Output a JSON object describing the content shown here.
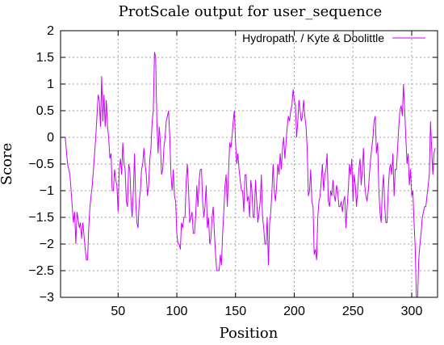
{
  "chart_data": {
    "type": "line",
    "title": "ProtScale output for user_sequence",
    "xlabel": "Position",
    "ylabel": "Score",
    "xlim": [
      1,
      322
    ],
    "ylim": [
      -3,
      2
    ],
    "xticks": [
      50,
      100,
      150,
      200,
      250,
      300
    ],
    "yticks": [
      2,
      1.5,
      1,
      0.5,
      0,
      -0.5,
      -1,
      -1.5,
      -2,
      -2.5,
      -3
    ],
    "ytick_labels": [
      "2",
      "1.5",
      "1",
      "0.5",
      "0",
      "−0.5",
      "−1",
      "−1.5",
      "−2",
      "−2.5",
      "−3"
    ],
    "grid": true,
    "legend_position": "top-right",
    "line_color": "#cc00ff",
    "series": [
      {
        "name": "Hydropath. / Kyte & Doolittle",
        "points": [
          [
            5,
            0.0
          ],
          [
            7,
            -0.5
          ],
          [
            9,
            -0.7
          ],
          [
            10,
            -1.0
          ],
          [
            12,
            -1.6
          ],
          [
            13,
            -1.4
          ],
          [
            14,
            -2.0
          ],
          [
            15,
            -1.4
          ],
          [
            17,
            -1.7
          ],
          [
            18,
            -1.6
          ],
          [
            19,
            -1.9
          ],
          [
            20,
            -1.6
          ],
          [
            22,
            -2.1
          ],
          [
            23,
            -2.3
          ],
          [
            24,
            -2.3
          ],
          [
            25,
            -1.7
          ],
          [
            26,
            -1.3
          ],
          [
            27,
            -1.1
          ],
          [
            28,
            -0.9
          ],
          [
            30,
            -0.3
          ],
          [
            31,
            0.0
          ],
          [
            32,
            0.4
          ],
          [
            33,
            0.8
          ],
          [
            34,
            0.7
          ],
          [
            35,
            0.2
          ],
          [
            36,
            1.15
          ],
          [
            37,
            0.3
          ],
          [
            38,
            0.8
          ],
          [
            39,
            0.2
          ],
          [
            40,
            0.7
          ],
          [
            41,
            0.2
          ],
          [
            42,
            0.0
          ],
          [
            43,
            -0.4
          ],
          [
            44,
            -0.3
          ],
          [
            45,
            -1.0
          ],
          [
            46,
            -1.0
          ],
          [
            47,
            -0.6
          ],
          [
            48,
            -0.8
          ],
          [
            49,
            -0.9
          ],
          [
            50,
            -1.4
          ],
          [
            51,
            -0.6
          ],
          [
            52,
            -0.4
          ],
          [
            53,
            -0.7
          ],
          [
            54,
            -0.1
          ],
          [
            55,
            -0.5
          ],
          [
            56,
            -0.6
          ],
          [
            57,
            -1.2
          ],
          [
            58,
            -1.3
          ],
          [
            59,
            -0.5
          ],
          [
            60,
            -0.6
          ],
          [
            61,
            -1.2
          ],
          [
            62,
            -1.5
          ],
          [
            63,
            -1.0
          ],
          [
            64,
            -0.3
          ],
          [
            65,
            -1.2
          ],
          [
            66,
            -1.6
          ],
          [
            67,
            -1.7
          ],
          [
            68,
            -1.2
          ],
          [
            69,
            -1.0
          ],
          [
            70,
            -0.6
          ],
          [
            71,
            -0.5
          ],
          [
            72,
            -0.2
          ],
          [
            73,
            -0.5
          ],
          [
            74,
            -0.7
          ],
          [
            75,
            -1.1
          ],
          [
            76,
            -0.9
          ],
          [
            77,
            -0.4
          ],
          [
            78,
            -0.2
          ],
          [
            79,
            0.3
          ],
          [
            80,
            0.5
          ],
          [
            81,
            1.6
          ],
          [
            82,
            1.5
          ],
          [
            83,
            0.3
          ],
          [
            84,
            -0.3
          ],
          [
            85,
            0.2
          ],
          [
            86,
            -0.1
          ],
          [
            87,
            -0.7
          ],
          [
            88,
            -0.6
          ],
          [
            89,
            -0.2
          ],
          [
            90,
            0.0
          ],
          [
            91,
            0.3
          ],
          [
            92,
            0.4
          ],
          [
            93,
            0.5
          ],
          [
            94,
            0.0
          ],
          [
            95,
            -0.7
          ],
          [
            96,
            -1.0
          ],
          [
            97,
            -0.6
          ],
          [
            98,
            -1.1
          ],
          [
            99,
            -1.2
          ],
          [
            100,
            -1.8
          ],
          [
            101,
            -2.0
          ],
          [
            102,
            -2.0
          ],
          [
            103,
            -2.1
          ],
          [
            104,
            -1.6
          ],
          [
            105,
            -1.7
          ],
          [
            106,
            -1.5
          ],
          [
            107,
            -1.5
          ],
          [
            108,
            -0.8
          ],
          [
            109,
            -0.5
          ],
          [
            110,
            -1.0
          ],
          [
            111,
            -1.6
          ],
          [
            112,
            -1.5
          ],
          [
            113,
            -1.4
          ],
          [
            114,
            -1.8
          ],
          [
            115,
            -1.8
          ],
          [
            116,
            -1.5
          ],
          [
            117,
            -0.9
          ],
          [
            118,
            -1.3
          ],
          [
            119,
            -0.8
          ],
          [
            120,
            -0.6
          ],
          [
            121,
            -0.6
          ],
          [
            122,
            -1.2
          ],
          [
            123,
            -1.5
          ],
          [
            124,
            -1.3
          ],
          [
            125,
            -0.9
          ],
          [
            126,
            -1.7
          ],
          [
            127,
            -1.5
          ],
          [
            128,
            -2.0
          ],
          [
            129,
            -1.9
          ],
          [
            130,
            -1.5
          ],
          [
            131,
            -1.3
          ],
          [
            132,
            -1.8
          ],
          [
            133,
            -2.2
          ],
          [
            134,
            -2.5
          ],
          [
            135,
            -2.5
          ],
          [
            136,
            -2.5
          ],
          [
            137,
            -2.2
          ],
          [
            138,
            -2.4
          ],
          [
            139,
            -1.8
          ],
          [
            140,
            -1.4
          ],
          [
            141,
            -0.9
          ],
          [
            142,
            -0.7
          ],
          [
            143,
            -1.3
          ],
          [
            144,
            -0.7
          ],
          [
            145,
            -0.1
          ],
          [
            146,
            -0.2
          ],
          [
            147,
            0.0
          ],
          [
            148,
            0.3
          ],
          [
            149,
            0.5
          ],
          [
            150,
            -0.1
          ],
          [
            151,
            -0.5
          ],
          [
            152,
            -0.3
          ],
          [
            153,
            -0.6
          ],
          [
            154,
            -0.8
          ],
          [
            155,
            -1.0
          ],
          [
            156,
            -1.0
          ],
          [
            157,
            -1.4
          ],
          [
            158,
            -0.7
          ],
          [
            159,
            -0.7
          ],
          [
            160,
            -1.2
          ],
          [
            161,
            -1.1
          ],
          [
            162,
            -1.5
          ],
          [
            163,
            -0.8
          ],
          [
            164,
            -1.0
          ],
          [
            165,
            -1.5
          ],
          [
            166,
            -1.5
          ],
          [
            167,
            -0.8
          ],
          [
            168,
            -1.2
          ],
          [
            169,
            -1.6
          ],
          [
            170,
            -1.4
          ],
          [
            171,
            -1.2
          ],
          [
            172,
            -0.7
          ],
          [
            173,
            -1.5
          ],
          [
            174,
            -1.7
          ],
          [
            175,
            -2.0
          ],
          [
            176,
            -2.0
          ],
          [
            177,
            -1.5
          ],
          [
            178,
            -2.4
          ],
          [
            179,
            -1.6
          ],
          [
            180,
            -1.4
          ],
          [
            181,
            -1.0
          ],
          [
            182,
            -0.5
          ],
          [
            183,
            -1.0
          ],
          [
            184,
            -1.2
          ],
          [
            185,
            -0.9
          ],
          [
            186,
            -0.5
          ],
          [
            187,
            -0.7
          ],
          [
            188,
            -0.3
          ],
          [
            189,
            -0.6
          ],
          [
            190,
            -0.2
          ],
          [
            191,
            0.0
          ],
          [
            192,
            -0.4
          ],
          [
            193,
            -0.1
          ],
          [
            194,
            0.2
          ],
          [
            195,
            0.4
          ],
          [
            196,
            0.3
          ],
          [
            197,
            0.5
          ],
          [
            198,
            0.6
          ],
          [
            199,
            0.9
          ],
          [
            200,
            0.7
          ],
          [
            201,
            0.6
          ],
          [
            202,
            0.0
          ],
          [
            203,
            0.3
          ],
          [
            204,
            0.7
          ],
          [
            205,
            0.5
          ],
          [
            206,
            0.3
          ],
          [
            207,
            0.4
          ],
          [
            208,
            0.7
          ],
          [
            209,
            0.4
          ],
          [
            210,
            0.2
          ],
          [
            211,
            -0.2
          ],
          [
            212,
            -1.1
          ],
          [
            213,
            -1.0
          ],
          [
            214,
            -0.6
          ],
          [
            215,
            -1.2
          ],
          [
            216,
            -1.3
          ],
          [
            217,
            -2.2
          ],
          [
            218,
            -2.1
          ],
          [
            219,
            -2.3
          ],
          [
            220,
            -1.5
          ],
          [
            221,
            -1.2
          ],
          [
            222,
            -1.1
          ],
          [
            223,
            -0.8
          ],
          [
            224,
            -0.5
          ],
          [
            225,
            -1.0
          ],
          [
            226,
            -0.7
          ],
          [
            227,
            -0.6
          ],
          [
            228,
            -0.3
          ],
          [
            229,
            -1.2
          ],
          [
            230,
            -1.3
          ],
          [
            231,
            -1.0
          ],
          [
            232,
            -1.1
          ],
          [
            233,
            -0.8
          ],
          [
            234,
            -1.1
          ],
          [
            235,
            -1.2
          ],
          [
            236,
            -0.9
          ],
          [
            237,
            -1.0
          ],
          [
            238,
            -1.3
          ],
          [
            239,
            -1.3
          ],
          [
            240,
            -1.2
          ],
          [
            241,
            -1.4
          ],
          [
            242,
            -1.2
          ],
          [
            243,
            -1.1
          ],
          [
            244,
            -1.7
          ],
          [
            245,
            -1.3
          ],
          [
            246,
            -1.0
          ],
          [
            247,
            -0.5
          ],
          [
            248,
            -0.7
          ],
          [
            249,
            -0.4
          ],
          [
            250,
            -1.2
          ],
          [
            251,
            -0.7
          ],
          [
            252,
            -0.9
          ],
          [
            253,
            -1.3
          ],
          [
            254,
            -1.0
          ],
          [
            255,
            -0.6
          ],
          [
            256,
            -0.4
          ],
          [
            257,
            -0.9
          ],
          [
            258,
            -0.6
          ],
          [
            259,
            -0.2
          ],
          [
            260,
            -0.9
          ],
          [
            261,
            -1.1
          ],
          [
            262,
            -1.2
          ],
          [
            263,
            -1.0
          ],
          [
            264,
            -0.7
          ],
          [
            265,
            -0.4
          ],
          [
            266,
            -0.2
          ],
          [
            267,
            0.0
          ],
          [
            268,
            0.3
          ],
          [
            269,
            0.4
          ],
          [
            270,
            -0.3
          ],
          [
            271,
            -0.1
          ],
          [
            272,
            -1.0
          ],
          [
            273,
            -1.4
          ],
          [
            274,
            -1.6
          ],
          [
            275,
            -1.0
          ],
          [
            276,
            -0.7
          ],
          [
            277,
            -1.3
          ],
          [
            278,
            -1.6
          ],
          [
            279,
            -1.6
          ],
          [
            280,
            -1.0
          ],
          [
            281,
            -0.6
          ],
          [
            282,
            -0.5
          ],
          [
            283,
            -0.7
          ],
          [
            284,
            -0.3
          ],
          [
            285,
            -1.1
          ],
          [
            286,
            -0.6
          ],
          [
            287,
            -0.6
          ],
          [
            288,
            -0.2
          ],
          [
            289,
            0.2
          ],
          [
            290,
            0.5
          ],
          [
            291,
            0.6
          ],
          [
            292,
            0.4
          ],
          [
            293,
            1.0
          ],
          [
            294,
            0.5
          ],
          [
            295,
            0.0
          ],
          [
            296,
            -0.5
          ],
          [
            297,
            -0.3
          ],
          [
            298,
            -0.9
          ],
          [
            299,
            -0.6
          ],
          [
            300,
            -1.1
          ],
          [
            301,
            -1.0
          ],
          [
            302,
            -1.6
          ],
          [
            303,
            -2.1
          ],
          [
            304,
            -3.0
          ],
          [
            305,
            -3.0
          ],
          [
            306,
            -2.3
          ],
          [
            307,
            -2.0
          ],
          [
            308,
            -1.8
          ],
          [
            309,
            -1.5
          ],
          [
            310,
            -1.4
          ],
          [
            311,
            -1.3
          ],
          [
            312,
            -1.3
          ],
          [
            313,
            -1.1
          ],
          [
            314,
            -0.9
          ],
          [
            315,
            -0.7
          ],
          [
            316,
            0.3
          ],
          [
            317,
            -0.2
          ],
          [
            318,
            -0.7
          ],
          [
            319,
            -0.3
          ],
          [
            320,
            -0.2
          ]
        ]
      }
    ]
  }
}
